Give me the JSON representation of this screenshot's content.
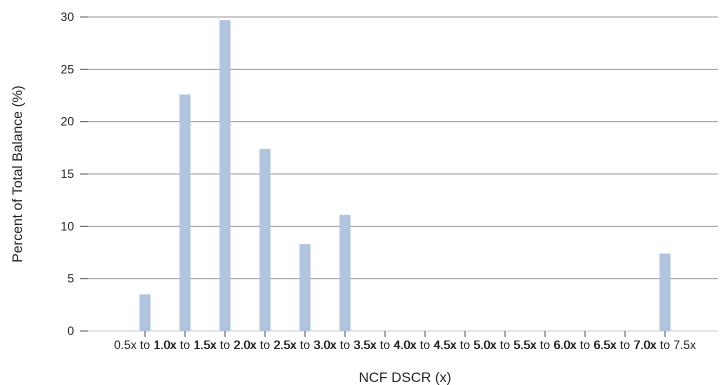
{
  "chart_data": {
    "type": "bar",
    "categories": [
      "0.5x to 1.0x",
      "1.0x to 1.5x",
      "1.5x to 2.0x",
      "2.0x to 2.5x",
      "2.5x to 3.0x",
      "3.0x to 3.5x",
      "3.5x to 4.0x",
      "4.0x to 4.5x",
      "4.5x to 5.0x",
      "5.0x to 5.5x",
      "5.5x to 6.0x",
      "6.0x to 6.5x",
      "6.5x to 7.0x",
      "7.0x to 7.5x"
    ],
    "values": [
      3.5,
      22.6,
      29.7,
      17.4,
      8.3,
      11.1,
      0,
      0,
      0,
      0,
      0,
      0,
      0,
      7.4
    ],
    "title": "",
    "xlabel": "NCF DSCR (x)",
    "ylabel": "Percent of Total Balance (%)",
    "ylim": [
      0,
      30
    ],
    "yticks": [
      0,
      5,
      10,
      15,
      20,
      25,
      30
    ],
    "grid": "horizontal",
    "bar_color": "#b0c4de",
    "grid_color": "#999999"
  }
}
